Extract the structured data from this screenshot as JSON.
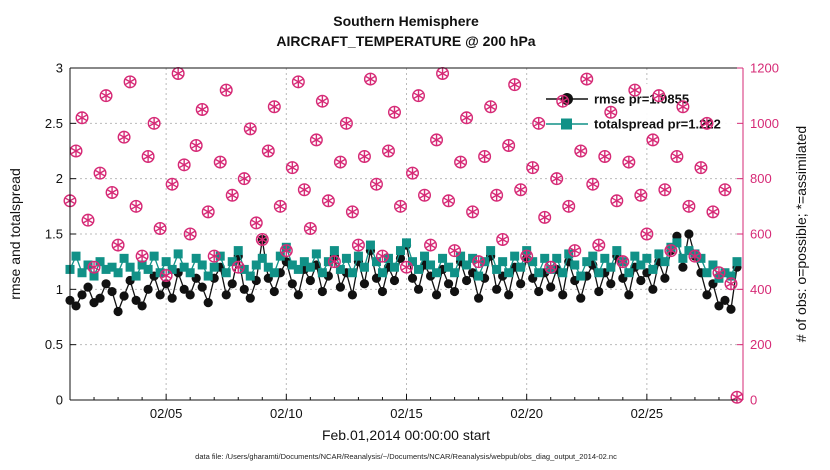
{
  "page": {
    "background": "#ffffff"
  },
  "chart_data": {
    "type": "line+scatter",
    "title": "Southern Hemisphere",
    "subtitle": "AIRCRAFT_TEMPERATURE @ 200 hPa",
    "xlabel": "Feb.01,2014 00:00:00 start",
    "ylabel_left": "rmse and totalspread",
    "ylabel_right": "# of obs: o=possible; *=assimilated",
    "caption": "data file: /Users/gharamti/Documents/NCAR/Reanalysis/~/Documents/NCAR/Reanalysis/webpub/obs_diag_output_2014-02.nc",
    "colors": {
      "rmse": "#111111",
      "spread": "#119187",
      "obs": "#d62a76",
      "grid": "#bbbbbb"
    },
    "x_start_day": 1,
    "x_end_day": 29,
    "samples_per_day": 4,
    "x_tick_days": [
      5,
      10,
      15,
      20,
      25
    ],
    "x_tick_labels": [
      "02/05",
      "02/10",
      "02/15",
      "02/20",
      "02/25"
    ],
    "ylim_left": [
      0,
      3
    ],
    "yticks_left": [
      0,
      0.5,
      1,
      1.5,
      2,
      2.5,
      3
    ],
    "yticks_left_labels": [
      "0",
      "0.5",
      "1",
      "1.5",
      "2",
      "2.5",
      "3"
    ],
    "ylim_right": [
      0,
      1200
    ],
    "yticks_right": [
      0,
      200,
      400,
      600,
      800,
      1000,
      1200
    ],
    "yticks_right_labels": [
      "0",
      "200",
      "400",
      "600",
      "800",
      "1000",
      "1200"
    ],
    "grid": true,
    "legend": {
      "position": "top-right",
      "entries": [
        {
          "label": "rmse pr=1.0855",
          "color": "#111111",
          "marker": "circle"
        },
        {
          "label": "totalspread pr=1.222",
          "color": "#119187",
          "marker": "square"
        }
      ]
    },
    "series": [
      {
        "name": "rmse",
        "axis": "left",
        "marker": "circle",
        "color": "#111111",
        "values": [
          0.9,
          0.85,
          0.95,
          1.02,
          0.88,
          0.92,
          1.05,
          0.98,
          0.8,
          0.94,
          1.08,
          0.9,
          0.85,
          1.0,
          1.12,
          0.95,
          1.05,
          0.92,
          1.15,
          1.0,
          0.95,
          1.1,
          1.02,
          0.88,
          1.1,
          1.2,
          0.95,
          1.05,
          1.3,
          1.0,
          0.92,
          1.08,
          1.45,
          1.1,
          0.98,
          1.15,
          1.25,
          1.05,
          0.95,
          1.18,
          1.08,
          1.22,
          0.98,
          1.12,
          1.3,
          1.02,
          1.15,
          0.95,
          1.25,
          1.05,
          1.35,
          1.1,
          0.98,
          1.2,
          1.08,
          1.28,
          1.4,
          1.1,
          1.0,
          1.22,
          1.12,
          0.95,
          1.18,
          1.05,
          0.98,
          1.25,
          1.08,
          1.15,
          0.92,
          1.1,
          1.3,
          1.0,
          1.12,
          0.95,
          1.2,
          1.05,
          1.28,
          1.1,
          0.98,
          1.15,
          1.02,
          1.18,
          0.95,
          1.25,
          1.08,
          0.92,
          1.12,
          1.22,
          0.98,
          1.15,
          1.05,
          1.3,
          1.1,
          0.95,
          1.2,
          1.08,
          1.15,
          1.0,
          1.25,
          1.1,
          1.35,
          1.48,
          1.2,
          1.5,
          1.3,
          1.15,
          0.95,
          1.05,
          0.85,
          0.9,
          0.82,
          1.2
        ]
      },
      {
        "name": "totalspread",
        "axis": "left",
        "marker": "square",
        "color": "#119187",
        "values": [
          1.18,
          1.3,
          1.15,
          1.22,
          1.12,
          1.25,
          1.18,
          1.2,
          1.15,
          1.28,
          1.2,
          1.12,
          1.22,
          1.18,
          1.3,
          1.15,
          1.25,
          1.18,
          1.32,
          1.2,
          1.15,
          1.28,
          1.22,
          1.12,
          1.2,
          1.3,
          1.15,
          1.25,
          1.35,
          1.18,
          1.12,
          1.22,
          1.28,
          1.2,
          1.15,
          1.3,
          1.38,
          1.22,
          1.18,
          1.25,
          1.2,
          1.32,
          1.15,
          1.25,
          1.35,
          1.18,
          1.28,
          1.15,
          1.3,
          1.2,
          1.4,
          1.25,
          1.15,
          1.28,
          1.2,
          1.35,
          1.42,
          1.25,
          1.18,
          1.3,
          1.22,
          1.15,
          1.28,
          1.2,
          1.15,
          1.3,
          1.22,
          1.28,
          1.12,
          1.25,
          1.35,
          1.18,
          1.25,
          1.15,
          1.3,
          1.2,
          1.35,
          1.25,
          1.15,
          1.28,
          1.18,
          1.28,
          1.15,
          1.32,
          1.22,
          1.12,
          1.25,
          1.3,
          1.15,
          1.28,
          1.2,
          1.35,
          1.25,
          1.15,
          1.3,
          1.22,
          1.28,
          1.18,
          1.32,
          1.25,
          1.38,
          1.42,
          1.28,
          1.35,
          1.32,
          1.28,
          1.15,
          1.22,
          1.1,
          1.15,
          1.12,
          1.25
        ]
      },
      {
        "name": "obs_possible",
        "axis": "right",
        "marker": "circle-open",
        "color": "#d62a76",
        "values": [
          720,
          900,
          1020,
          650,
          480,
          820,
          1100,
          750,
          560,
          950,
          1150,
          700,
          520,
          880,
          1000,
          620,
          450,
          780,
          1180,
          850,
          600,
          920,
          1050,
          680,
          520,
          860,
          1120,
          740,
          480,
          800,
          980,
          640,
          580,
          900,
          1060,
          700,
          540,
          840,
          1150,
          760,
          620,
          940,
          1080,
          720,
          500,
          860,
          1000,
          680,
          560,
          880,
          1160,
          780,
          520,
          900,
          1040,
          700,
          480,
          820,
          1100,
          740,
          560,
          940,
          1180,
          720,
          540,
          860,
          1020,
          680,
          500,
          880,
          1060,
          740,
          580,
          920,
          1140,
          760,
          520,
          840,
          1000,
          660,
          480,
          800,
          1080,
          700,
          540,
          900,
          1160,
          780,
          560,
          880,
          1040,
          720,
          500,
          860,
          1120,
          740,
          600,
          940,
          1100,
          760,
          540,
          880,
          1060,
          700,
          520,
          840,
          1000,
          680,
          460,
          760,
          420,
          10
        ]
      },
      {
        "name": "obs_assimilated",
        "axis": "right",
        "marker": "asterisk",
        "color": "#d62a76",
        "values": [
          720,
          900,
          1020,
          650,
          480,
          820,
          1100,
          750,
          560,
          950,
          1150,
          700,
          520,
          880,
          1000,
          620,
          450,
          780,
          1180,
          850,
          600,
          920,
          1050,
          680,
          520,
          860,
          1120,
          740,
          480,
          800,
          980,
          640,
          580,
          900,
          1060,
          700,
          540,
          840,
          1150,
          760,
          620,
          940,
          1080,
          720,
          500,
          860,
          1000,
          680,
          560,
          880,
          1160,
          780,
          520,
          900,
          1040,
          700,
          480,
          820,
          1100,
          740,
          560,
          940,
          1180,
          720,
          540,
          860,
          1020,
          680,
          500,
          880,
          1060,
          740,
          580,
          920,
          1140,
          760,
          520,
          840,
          1000,
          660,
          480,
          800,
          1080,
          700,
          540,
          900,
          1160,
          780,
          560,
          880,
          1040,
          720,
          500,
          860,
          1120,
          740,
          600,
          940,
          1100,
          760,
          540,
          880,
          1060,
          700,
          520,
          840,
          1000,
          680,
          460,
          760,
          420,
          10
        ]
      }
    ]
  }
}
